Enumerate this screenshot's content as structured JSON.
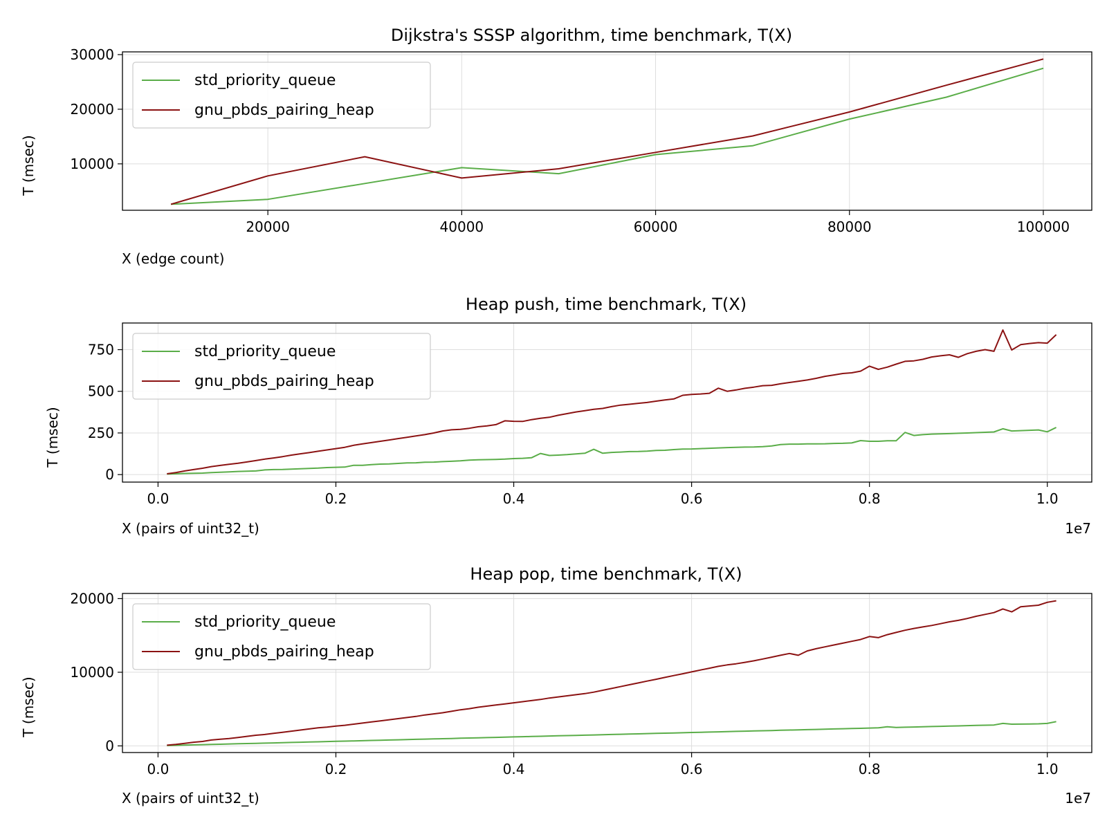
{
  "colors": {
    "std": "#5aad48",
    "gnu": "#8b1212",
    "grid": "#dddddd"
  },
  "chart_data": [
    {
      "type": "line",
      "title": "Dijkstra's SSSP algorithm, time benchmark, T(X)",
      "xlabel": "X (edge count)",
      "ylabel": "T (msec)",
      "xlim": [
        5000,
        105000
      ],
      "ylim": [
        1500,
        30500
      ],
      "xticks": [
        20000,
        40000,
        60000,
        80000,
        100000
      ],
      "xtick_labels": [
        "20000",
        "40000",
        "60000",
        "80000",
        "100000"
      ],
      "yticks": [
        10000,
        20000,
        30000
      ],
      "ytick_labels": [
        "10000",
        "20000",
        "30000"
      ],
      "x_offset_label": "",
      "grid": true,
      "legend": "upper left",
      "x": [
        10000,
        20000,
        30000,
        40000,
        50000,
        60000,
        70000,
        80000,
        90000,
        100000
      ],
      "series": [
        {
          "name": "std_priority_queue",
          "color": "#5aad48",
          "values": [
            2600,
            3500,
            6400,
            9300,
            8200,
            11700,
            13300,
            18200,
            22200,
            27500
          ]
        },
        {
          "name": "gnu_pbds_pairing_heap",
          "color": "#8b1212",
          "values": [
            2600,
            7800,
            11300,
            7400,
            9100,
            12100,
            15100,
            19500,
            24400,
            29200
          ]
        }
      ]
    },
    {
      "type": "line",
      "title": "Heap push, time benchmark, T(X)",
      "xlabel": "X (pairs of uint32_t)",
      "ylabel": "T (msec)",
      "xlim": [
        -400000,
        10500000
      ],
      "ylim": [
        -45,
        910
      ],
      "xticks": [
        0,
        2000000,
        4000000,
        6000000,
        8000000,
        10000000
      ],
      "xtick_labels": [
        "0.0",
        "0.2",
        "0.4",
        "0.6",
        "0.8",
        "1.0"
      ],
      "yticks": [
        0,
        250,
        500,
        750
      ],
      "ytick_labels": [
        "0",
        "250",
        "500",
        "750"
      ],
      "x_offset_label": "1e7",
      "grid": true,
      "legend": "upper left",
      "x_start": 100000,
      "x_step": 100000,
      "series": [
        {
          "name": "std_priority_queue",
          "color": "#5aad48",
          "values": [
            3,
            5,
            7,
            8,
            9,
            12,
            14,
            16,
            19,
            20,
            22,
            28,
            30,
            31,
            33,
            35,
            37,
            39,
            42,
            44,
            45,
            56,
            56,
            60,
            63,
            64,
            67,
            70,
            71,
            74,
            75,
            78,
            80,
            83,
            87,
            89,
            90,
            91,
            93,
            96,
            98,
            101,
            127,
            115,
            117,
            120,
            124,
            128,
            152,
            128,
            133,
            135,
            138,
            139,
            141,
            145,
            146,
            150,
            153,
            154,
            156,
            158,
            160,
            162,
            164,
            165,
            166,
            168,
            172,
            180,
            183,
            183,
            184,
            184,
            185,
            187,
            188,
            190,
            204,
            200,
            200,
            203,
            203,
            253,
            235,
            240,
            243,
            245,
            246,
            248,
            250,
            252,
            254,
            256,
            275,
            262,
            264,
            266,
            268,
            257,
            283
          ]
        },
        {
          "name": "gnu_pbds_pairing_heap",
          "color": "#8b1212",
          "values": [
            5,
            12,
            22,
            30,
            38,
            48,
            55,
            62,
            68,
            76,
            84,
            93,
            100,
            108,
            117,
            125,
            132,
            140,
            148,
            156,
            164,
            176,
            184,
            192,
            200,
            208,
            216,
            224,
            232,
            240,
            250,
            262,
            269,
            272,
            278,
            287,
            292,
            300,
            323,
            320,
            319,
            330,
            338,
            344,
            356,
            366,
            376,
            384,
            392,
            397,
            408,
            417,
            422,
            428,
            433,
            441,
            448,
            454,
            476,
            481,
            484,
            488,
            519,
            500,
            508,
            518,
            525,
            534,
            536,
            545,
            553,
            560,
            568,
            578,
            590,
            598,
            607,
            611,
            621,
            651,
            632,
            645,
            663,
            680,
            683,
            692,
            706,
            713,
            719,
            704,
            726,
            740,
            750,
            740,
            868,
            748,
            780,
            787,
            792,
            789,
            840
          ]
        }
      ]
    },
    {
      "type": "line",
      "title": "Heap pop, time benchmark, T(X)",
      "xlabel": "X (pairs of uint32_t)",
      "ylabel": "T (msec)",
      "xlim": [
        -400000,
        10500000
      ],
      "ylim": [
        -900,
        20700
      ],
      "xticks": [
        0,
        2000000,
        4000000,
        6000000,
        8000000,
        10000000
      ],
      "xtick_labels": [
        "0.0",
        "0.2",
        "0.4",
        "0.6",
        "0.8",
        "1.0"
      ],
      "yticks": [
        0,
        10000,
        20000
      ],
      "ytick_labels": [
        "0",
        "10000",
        "20000"
      ],
      "x_offset_label": "1e7",
      "grid": true,
      "legend": "upper left",
      "x_start": 100000,
      "x_step": 100000,
      "series": [
        {
          "name": "std_priority_queue",
          "color": "#5aad48",
          "values": [
            50,
            80,
            110,
            140,
            170,
            200,
            230,
            260,
            290,
            320,
            350,
            380,
            410,
            440,
            470,
            500,
            530,
            560,
            590,
            620,
            650,
            680,
            710,
            740,
            770,
            800,
            830,
            860,
            890,
            920,
            950,
            980,
            1010,
            1040,
            1070,
            1100,
            1130,
            1160,
            1190,
            1220,
            1250,
            1280,
            1310,
            1340,
            1370,
            1400,
            1430,
            1460,
            1490,
            1520,
            1550,
            1580,
            1610,
            1640,
            1670,
            1700,
            1730,
            1760,
            1790,
            1820,
            1850,
            1880,
            1910,
            1940,
            1970,
            2000,
            2030,
            2060,
            2090,
            2120,
            2150,
            2180,
            2210,
            2240,
            2270,
            2300,
            2330,
            2360,
            2390,
            2420,
            2450,
            2600,
            2510,
            2540,
            2570,
            2600,
            2630,
            2660,
            2690,
            2720,
            2750,
            2780,
            2810,
            2840,
            3050,
            2950,
            2960,
            2980,
            3000,
            3050,
            3300
          ]
        },
        {
          "name": "gnu_pbds_pairing_heap",
          "color": "#8b1212",
          "values": [
            100,
            200,
            350,
            500,
            600,
            800,
            900,
            1000,
            1150,
            1300,
            1450,
            1550,
            1700,
            1850,
            2000,
            2150,
            2300,
            2450,
            2550,
            2700,
            2800,
            2950,
            3100,
            3250,
            3400,
            3550,
            3700,
            3850,
            4000,
            4200,
            4350,
            4500,
            4700,
            4900,
            5050,
            5250,
            5400,
            5550,
            5700,
            5850,
            6000,
            6150,
            6300,
            6500,
            6650,
            6800,
            6950,
            7100,
            7300,
            7550,
            7800,
            8050,
            8300,
            8550,
            8800,
            9050,
            9300,
            9550,
            9800,
            10050,
            10300,
            10550,
            10800,
            11000,
            11150,
            11350,
            11550,
            11800,
            12050,
            12300,
            12550,
            12300,
            12900,
            13200,
            13450,
            13700,
            13950,
            14200,
            14450,
            14850,
            14700,
            15100,
            15400,
            15700,
            15950,
            16150,
            16350,
            16600,
            16850,
            17050,
            17300,
            17600,
            17850,
            18100,
            18600,
            18200,
            18900,
            19000,
            19100,
            19500,
            19700
          ]
        }
      ]
    }
  ]
}
